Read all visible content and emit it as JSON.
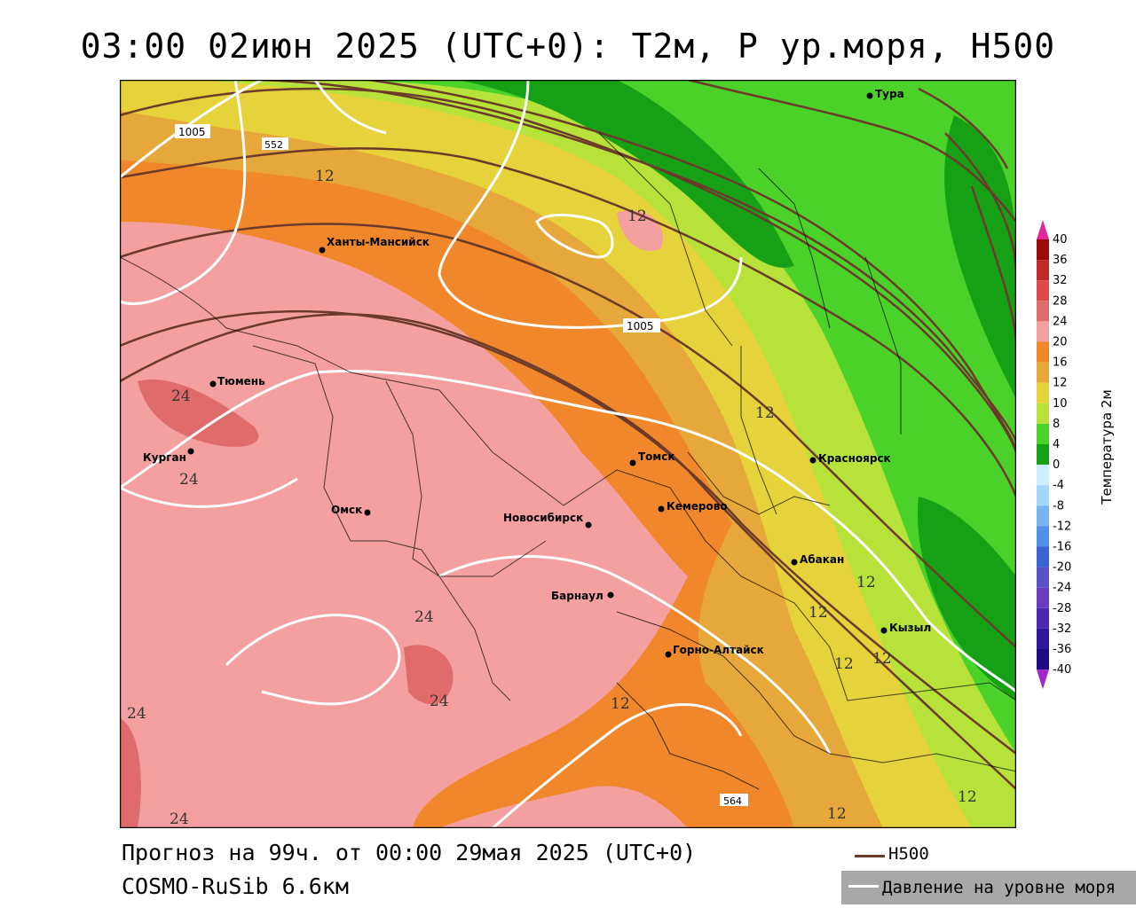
{
  "title": "03:00 02июн 2025 (UTC+0): T2м, P ур.моря, H500",
  "footer": {
    "forecast": "Прогноз на 99ч. от 00:00 29мая 2025 (UTC+0)",
    "model": "COSMO-RuSib 6.6км"
  },
  "legend": {
    "h500_label": "H500",
    "h500_color": "#6b3a2a",
    "pressure_label": "Давление на уровне моря",
    "pressure_color": "#ffffff"
  },
  "colorbar": {
    "title": "Температура 2м",
    "levels": [
      "40",
      "36",
      "32",
      "28",
      "24",
      "20",
      "16",
      "12",
      "10",
      "8",
      "4",
      "0",
      "-4",
      "-8",
      "-12",
      "-16",
      "-20",
      "-24",
      "-28",
      "-32",
      "-36",
      "-40"
    ],
    "colors": [
      "#9b0a0a",
      "#c22a2a",
      "#de4a4a",
      "#e06b6b",
      "#f4a0a0",
      "#f0872a",
      "#e6a83a",
      "#e6d23a",
      "#b6e23a",
      "#4ad22a",
      "#16a016",
      "#c8f0ff",
      "#a0d8ff",
      "#78b4f0",
      "#5090e6",
      "#3a64d2",
      "#5a50c8",
      "#6a3cc0",
      "#4a28b0",
      "#30169a",
      "#1e0a82"
    ],
    "top_arrow_color": "#e0289a",
    "bottom_arrow_color": "#a028c8"
  },
  "cities": [
    {
      "name": "Тура"
    },
    {
      "name": "Ханты-Мансийск"
    },
    {
      "name": "Тюмень"
    },
    {
      "name": "Курган"
    },
    {
      "name": "Омск"
    },
    {
      "name": "Томск"
    },
    {
      "name": "Красноярск"
    },
    {
      "name": "Кемерово"
    },
    {
      "name": "Новосибирск"
    },
    {
      "name": "Абакан"
    },
    {
      "name": "Барнаул"
    },
    {
      "name": "Кызыл"
    },
    {
      "name": "Горно-Алтайск"
    }
  ],
  "contour_labels": {
    "pressure": [
      "1005",
      "1005"
    ],
    "h500": [
      "552",
      "564"
    ],
    "temperature": [
      "12",
      "12",
      "12",
      "12",
      "12",
      "12",
      "12",
      "12",
      "12",
      "12",
      "24",
      "24",
      "24",
      "24",
      "24",
      "24"
    ]
  }
}
